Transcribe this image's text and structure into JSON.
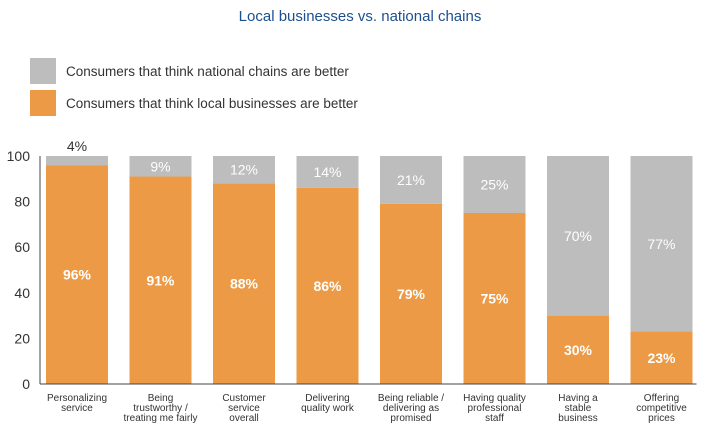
{
  "chart_data": {
    "type": "bar",
    "stacked": true,
    "title": "Local businesses vs. national chains",
    "xlabel": "",
    "ylabel": "",
    "ylim": [
      0,
      100
    ],
    "yticks": [
      "0",
      "20",
      "40",
      "60",
      "80",
      "100"
    ],
    "grid": false,
    "legend_position": "top-left",
    "categories": [
      [
        "Personalizing",
        "service"
      ],
      [
        "Being",
        "trustworthy /",
        "treating me fairly"
      ],
      [
        "Customer",
        "service",
        "overall"
      ],
      [
        "Delivering",
        "quality work"
      ],
      [
        "Being reliable /",
        "delivering as",
        "promised"
      ],
      [
        "Having quality",
        "professional",
        "staff"
      ],
      [
        "Having a",
        "stable",
        "business"
      ],
      [
        "Offering",
        "competitive",
        "prices"
      ]
    ],
    "series": [
      {
        "name": "Consumers that think local businesses are better",
        "color": "#ec9a45",
        "values": [
          96,
          91,
          88,
          86,
          79,
          75,
          30,
          23
        ],
        "labels": [
          "96%",
          "91%",
          "88%",
          "86%",
          "79%",
          "75%",
          "30%",
          "23%"
        ]
      },
      {
        "name": "Consumers that think national chains are better",
        "color": "#bdbdbd",
        "values": [
          4,
          9,
          12,
          14,
          21,
          25,
          70,
          77
        ],
        "labels": [
          "4%",
          "9%",
          "12%",
          "14%",
          "21%",
          "25%",
          "70%",
          "77%"
        ]
      }
    ]
  }
}
